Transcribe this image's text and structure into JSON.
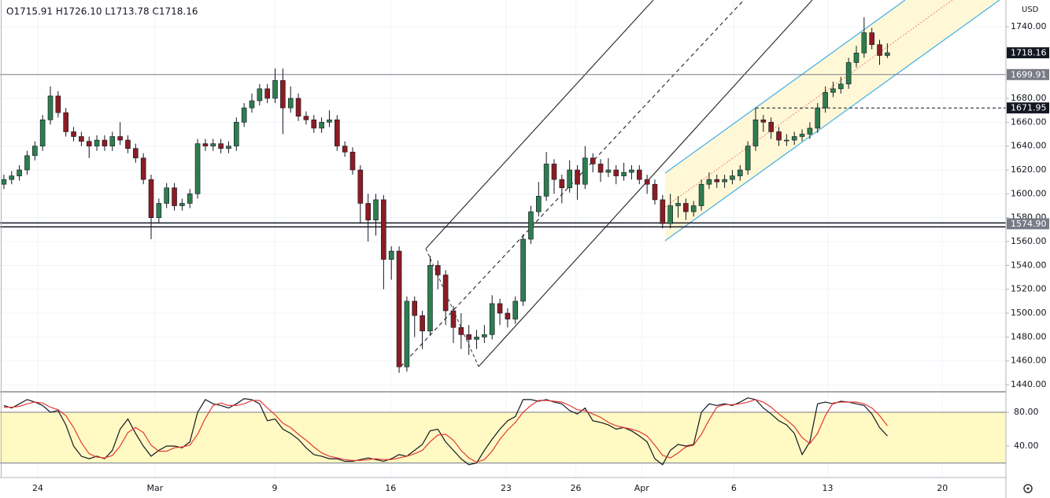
{
  "chart_data": {
    "type": "candlestick",
    "ohlc_legend": "O1715.91 H1726.10 L1713.78 C1718.16",
    "currency": "USD",
    "up_color": "#2e7d4f",
    "down_color": "#8c1c24",
    "xlim": [
      -0.5,
      129.3
    ],
    "xticks": [
      {
        "value": 4.37,
        "label": "24"
      },
      {
        "value": 19.5,
        "label": "Mar"
      },
      {
        "value": 34.95,
        "label": "9"
      },
      {
        "value": 49.9,
        "label": "16"
      },
      {
        "value": 64.8,
        "label": "23"
      },
      {
        "value": 73.8,
        "label": "26"
      },
      {
        "value": 82.3,
        "label": "Apr"
      },
      {
        "value": 94.2,
        "label": "6"
      },
      {
        "value": 106.3,
        "label": "13"
      },
      {
        "value": 121.1,
        "label": "20"
      }
    ],
    "ylim": [
      1434.1,
      1762.4
    ],
    "yticks": [
      {
        "value": 1440,
        "label": "1440.00"
      },
      {
        "value": 1460,
        "label": "1460.00"
      },
      {
        "value": 1480,
        "label": "1480.00"
      },
      {
        "value": 1500,
        "label": "1500.00"
      },
      {
        "value": 1520,
        "label": "1520.00"
      },
      {
        "value": 1540,
        "label": "1540.00"
      },
      {
        "value": 1560,
        "label": "1560.00"
      },
      {
        "value": 1580,
        "label": "1580.00"
      },
      {
        "value": 1600,
        "label": "1600.00"
      },
      {
        "value": 1620,
        "label": "1620.00"
      },
      {
        "value": 1640,
        "label": "1640.00"
      },
      {
        "value": 1660,
        "label": "1660.00"
      },
      {
        "value": 1680,
        "label": "1680.00"
      },
      {
        "value": 1740,
        "label": "1740.00"
      }
    ],
    "price_tags": [
      {
        "value": 1718.16,
        "color": "#131722",
        "style": "last"
      },
      {
        "value": 1699.91,
        "color": "#787b86",
        "style": "solid"
      },
      {
        "value": 1671.95,
        "color": "#131722",
        "style": "dashed"
      },
      {
        "value": 1574.9,
        "label": "1574.90",
        "color": "#787b86",
        "style": "double"
      }
    ],
    "open": [
      1608,
      1612,
      1615,
      1620,
      1632,
      1640,
      1662,
      1682,
      1668,
      1652,
      1648,
      1644,
      1640,
      1645,
      1640,
      1648,
      1645,
      1638,
      1630,
      1612,
      1580,
      1592,
      1605,
      1590,
      1592,
      1600,
      1642,
      1640,
      1642,
      1638,
      1640,
      1660,
      1672,
      1678,
      1688,
      1680,
      1695,
      1672,
      1680,
      1665,
      1662,
      1655,
      1660,
      1662,
      1640,
      1635,
      1620,
      1592,
      1578,
      1595,
      1545,
      1552,
      1455,
      1510,
      1498,
      1485,
      1540,
      1532,
      1502,
      1488,
      1482,
      1478,
      1480,
      1482,
      1508,
      1500,
      1495,
      1510,
      1562,
      1585,
      1598,
      1625,
      1612,
      1605,
      1620,
      1608,
      1630,
      1625,
      1618,
      1620,
      1615,
      1618,
      1620,
      1612,
      1608,
      1595,
      1575,
      1590,
      1592,
      1585,
      1590,
      1608,
      1612,
      1610,
      1612,
      1615,
      1620,
      1640,
      1662,
      1660,
      1652,
      1645,
      1645,
      1648,
      1650,
      1655,
      1672,
      1685,
      1688,
      1692,
      1710,
      1718,
      1735,
      1725,
      1715.91
    ],
    "high": [
      1616,
      1619,
      1624,
      1636,
      1644,
      1666,
      1690,
      1686,
      1672,
      1656,
      1652,
      1648,
      1649,
      1649,
      1652,
      1660,
      1649,
      1642,
      1634,
      1616,
      1596,
      1609,
      1609,
      1596,
      1604,
      1646,
      1646,
      1646,
      1646,
      1644,
      1664,
      1676,
      1684,
      1692,
      1692,
      1705,
      1705,
      1690,
      1684,
      1669,
      1666,
      1664,
      1670,
      1666,
      1644,
      1639,
      1624,
      1600,
      1600,
      1599,
      1556,
      1556,
      1514,
      1514,
      1502,
      1548,
      1544,
      1536,
      1506,
      1500,
      1490,
      1486,
      1490,
      1515,
      1512,
      1504,
      1514,
      1566,
      1590,
      1610,
      1635,
      1629,
      1616,
      1628,
      1624,
      1640,
      1634,
      1629,
      1630,
      1624,
      1626,
      1624,
      1624,
      1616,
      1612,
      1599,
      1600,
      1598,
      1596,
      1594,
      1612,
      1618,
      1616,
      1616,
      1620,
      1624,
      1644,
      1672,
      1666,
      1664,
      1656,
      1650,
      1652,
      1654,
      1660,
      1676,
      1690,
      1694,
      1698,
      1714,
      1724,
      1748,
      1739,
      1729,
      1726.1
    ],
    "low": [
      1604,
      1608,
      1611,
      1616,
      1628,
      1636,
      1658,
      1664,
      1648,
      1644,
      1640,
      1630,
      1636,
      1636,
      1636,
      1641,
      1634,
      1626,
      1608,
      1562,
      1576,
      1588,
      1586,
      1586,
      1588,
      1596,
      1636,
      1636,
      1634,
      1634,
      1636,
      1656,
      1668,
      1674,
      1676,
      1676,
      1650,
      1668,
      1661,
      1658,
      1651,
      1651,
      1656,
      1636,
      1631,
      1616,
      1575,
      1560,
      1565,
      1520,
      1528,
      1450,
      1451,
      1480,
      1470,
      1481,
      1520,
      1490,
      1475,
      1470,
      1465,
      1470,
      1475,
      1478,
      1490,
      1488,
      1491,
      1506,
      1558,
      1581,
      1594,
      1600,
      1592,
      1601,
      1595,
      1604,
      1618,
      1610,
      1614,
      1608,
      1611,
      1612,
      1608,
      1600,
      1591,
      1571,
      1571,
      1580,
      1578,
      1581,
      1586,
      1604,
      1605,
      1605,
      1608,
      1611,
      1616,
      1636,
      1652,
      1646,
      1640,
      1640,
      1641,
      1644,
      1646,
      1651,
      1668,
      1681,
      1684,
      1688,
      1706,
      1714,
      1721,
      1708,
      1713.78
    ],
    "close": [
      1612,
      1615,
      1620,
      1632,
      1640,
      1662,
      1682,
      1668,
      1652,
      1648,
      1644,
      1640,
      1645,
      1640,
      1648,
      1645,
      1638,
      1630,
      1612,
      1580,
      1592,
      1605,
      1590,
      1592,
      1600,
      1642,
      1640,
      1642,
      1638,
      1640,
      1660,
      1672,
      1678,
      1688,
      1680,
      1695,
      1672,
      1680,
      1665,
      1662,
      1655,
      1660,
      1662,
      1640,
      1635,
      1620,
      1592,
      1578,
      1595,
      1545,
      1552,
      1455,
      1510,
      1498,
      1485,
      1540,
      1532,
      1502,
      1488,
      1482,
      1478,
      1480,
      1482,
      1508,
      1500,
      1495,
      1510,
      1562,
      1585,
      1598,
      1625,
      1612,
      1605,
      1620,
      1608,
      1630,
      1625,
      1618,
      1620,
      1615,
      1618,
      1620,
      1612,
      1608,
      1595,
      1575,
      1590,
      1592,
      1585,
      1590,
      1608,
      1612,
      1610,
      1612,
      1615,
      1620,
      1640,
      1662,
      1660,
      1652,
      1645,
      1645,
      1648,
      1650,
      1655,
      1672,
      1685,
      1688,
      1692,
      1710,
      1718,
      1735,
      1725,
      1715.91,
      1718.16
    ],
    "stochastic": {
      "ylim": [
        2.8,
        104.2
      ],
      "yticks": [
        {
          "value": 80,
          "label": "80.00"
        },
        {
          "value": 40,
          "label": "40.00"
        }
      ],
      "band": [
        20,
        80
      ],
      "band_color": "#fff9c4",
      "series": [
        {
          "color": "#131722",
          "values": [
            88,
            85,
            90,
            95,
            92,
            88,
            80,
            82,
            65,
            40,
            28,
            25,
            28,
            25,
            35,
            60,
            72,
            55,
            40,
            28,
            35,
            40,
            40,
            38,
            45,
            80,
            95,
            90,
            88,
            85,
            90,
            96,
            95,
            90,
            70,
            72,
            60,
            55,
            48,
            38,
            30,
            28,
            25,
            25,
            22,
            22,
            24,
            26,
            24,
            22,
            25,
            30,
            28,
            35,
            42,
            58,
            60,
            45,
            35,
            25,
            18,
            20,
            35,
            48,
            60,
            70,
            75,
            95,
            95,
            93,
            95,
            92,
            90,
            82,
            78,
            85,
            70,
            68,
            65,
            60,
            62,
            58,
            52,
            45,
            25,
            18,
            35,
            42,
            40,
            42,
            80,
            90,
            88,
            90,
            88,
            92,
            97,
            95,
            85,
            78,
            70,
            65,
            55,
            30,
            45,
            90,
            92,
            90,
            93,
            92,
            90,
            88,
            78,
            62,
            52
          ]
        },
        {
          "color": "#e53935",
          "values": [
            86,
            86,
            87,
            90,
            92,
            91,
            86,
            83,
            76,
            62,
            44,
            31,
            27,
            26,
            29,
            40,
            56,
            62,
            56,
            41,
            34,
            34,
            38,
            39,
            41,
            54,
            73,
            88,
            91,
            88,
            88,
            90,
            94,
            94,
            85,
            77,
            67,
            62,
            54,
            47,
            39,
            32,
            28,
            26,
            24,
            23,
            23,
            24,
            25,
            24,
            24,
            26,
            28,
            31,
            35,
            45,
            53,
            54,
            47,
            35,
            26,
            21,
            24,
            34,
            48,
            59,
            68,
            80,
            88,
            94,
            94,
            93,
            92,
            88,
            83,
            82,
            78,
            74,
            68,
            64,
            62,
            60,
            57,
            52,
            41,
            29,
            26,
            32,
            39,
            41,
            54,
            71,
            86,
            89,
            89,
            90,
            92,
            95,
            92,
            86,
            78,
            71,
            63,
            50,
            43,
            55,
            76,
            91,
            92,
            92,
            92,
            90,
            85,
            76,
            64
          ]
        }
      ]
    }
  }
}
